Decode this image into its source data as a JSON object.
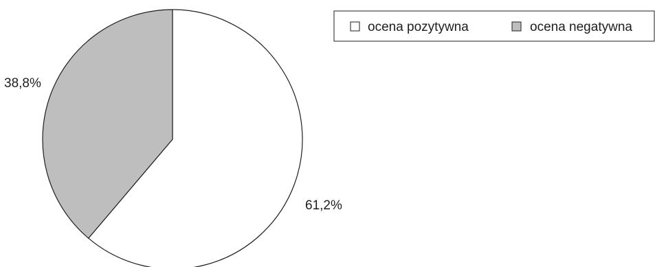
{
  "chart_data": {
    "type": "pie",
    "categories": [
      "ocena pozytywna",
      "ocena negatywna"
    ],
    "values": [
      61.2,
      38.8
    ],
    "value_labels": [
      "61,2%",
      "38,8%"
    ],
    "colors": [
      "#ffffff",
      "#bebebe"
    ],
    "stroke_color": "#1e1e1e",
    "legend": {
      "placement": "top-right",
      "entries": [
        "ocena pozytywna",
        "ocena negatywna"
      ]
    },
    "start_angle_deg": 0,
    "direction": "clockwise",
    "grid": false
  }
}
